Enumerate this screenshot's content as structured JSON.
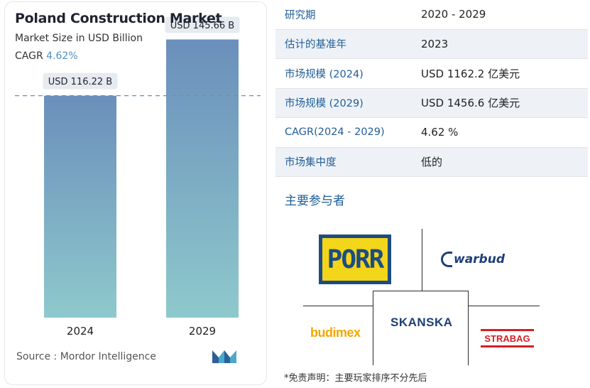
{
  "chart_data": {
    "type": "bar",
    "title": "Poland Construction Market",
    "subtitle": "Market Size in USD Billion",
    "cagr_label": "CAGR",
    "cagr_value": "4.62%",
    "categories": [
      "2024",
      "2029"
    ],
    "values": [
      116.22,
      145.66
    ],
    "data_labels": [
      "USD 116.22 B",
      "USD 145.66 B"
    ],
    "ylim": [
      0,
      160
    ],
    "reference_line": 116.22,
    "colors": {
      "bar_top": "#6b8fbb",
      "bar_bottom": "#8ec9cc",
      "reference": "#6c8fb8"
    }
  },
  "source": "Source :  Mordor Intelligence",
  "table": [
    {
      "key": "研究期",
      "value": "2020 - 2029"
    },
    {
      "key": "估计的基准年",
      "value": "2023"
    },
    {
      "key": "市场规模 (2024)",
      "value": "USD 1162.2 亿美元"
    },
    {
      "key": "市场规模 (2029)",
      "value": "USD 1456.6 亿美元"
    },
    {
      "key": "CAGR(2024 - 2029)",
      "value": "4.62 %"
    },
    {
      "key": "市场集中度",
      "value": "低的"
    }
  ],
  "players_title": "主要参与者",
  "players": {
    "porr": "PORR",
    "warbud": "warbud",
    "budimex": "budimex",
    "skanska": "SKANSKA",
    "strabag": "STRABAG"
  },
  "disclaimer": "*免责声明：主要玩家排序不分先后",
  "accent_color": "#1f5d99"
}
